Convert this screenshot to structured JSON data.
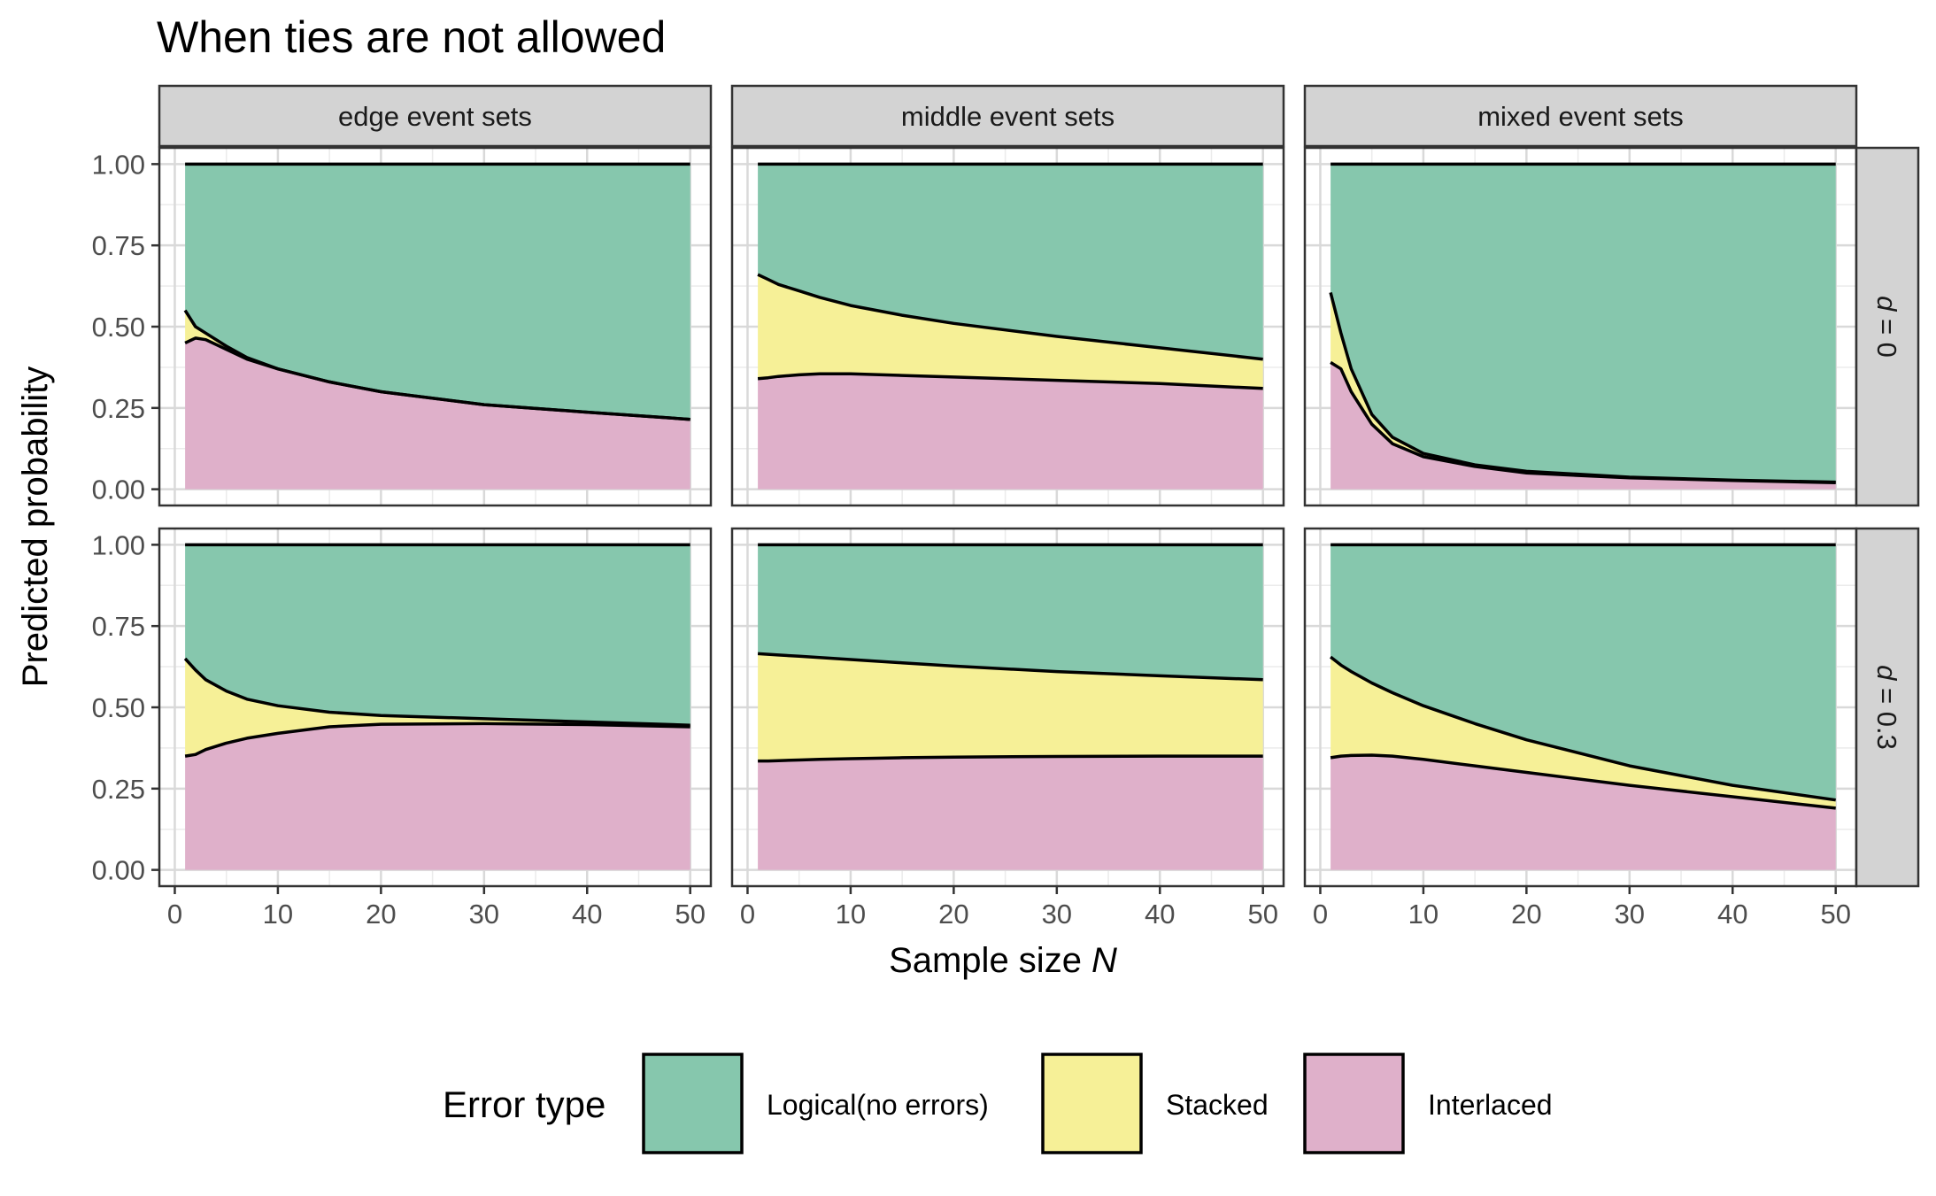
{
  "title": "When ties are not allowed",
  "colors": {
    "logical": "#86C7AD",
    "stacked": "#F6F097",
    "interlaced": "#DFB0CA",
    "line": "#000000",
    "strip": "#D3D3D3",
    "grid_major": "#D9D9D9",
    "grid_minor": "#EBEBEB"
  },
  "chart_data": {
    "type": "area",
    "stacked": true,
    "facet_columns": [
      "edge event sets",
      "middle event sets",
      "mixed event sets"
    ],
    "facet_rows": [
      {
        "label_symbol": "d",
        "label_value": " = 0"
      },
      {
        "label_symbol": "d",
        "label_value": " = 0.3"
      }
    ],
    "xlabel": "Sample size ",
    "xlabel_italic": "N",
    "ylabel": "Predicted probability",
    "xlim": [
      -1.5,
      52
    ],
    "ylim": [
      -0.05,
      1.05
    ],
    "x_ticks": [
      0,
      10,
      20,
      30,
      40,
      50
    ],
    "x_tick_labels": [
      "0",
      "10",
      "20",
      "30",
      "40",
      "50"
    ],
    "y_ticks": [
      0,
      0.25,
      0.5,
      0.75,
      1.0
    ],
    "y_tick_labels": [
      "0.00",
      "0.25",
      "0.50",
      "0.75",
      "1.00"
    ],
    "grid": true,
    "legend": {
      "title": "Error type",
      "position": "bottom",
      "entries": [
        {
          "key": "logical",
          "label": "Logical(no errors)"
        },
        {
          "key": "stacked",
          "label": "Stacked"
        },
        {
          "key": "interlaced",
          "label": "Interlaced"
        }
      ]
    },
    "x": [
      1,
      2,
      3,
      5,
      7,
      10,
      15,
      20,
      30,
      40,
      50
    ],
    "panels": [
      {
        "row": 0,
        "col": 0,
        "interlaced": [
          0.45,
          0.465,
          0.46,
          0.43,
          0.4,
          0.37,
          0.33,
          0.3,
          0.26,
          0.237,
          0.215
        ],
        "cumulative_stacked": [
          0.55,
          0.5,
          0.48,
          0.44,
          0.405,
          0.37,
          0.33,
          0.3,
          0.26,
          0.237,
          0.215
        ]
      },
      {
        "row": 0,
        "col": 1,
        "interlaced": [
          0.34,
          0.343,
          0.347,
          0.352,
          0.355,
          0.355,
          0.35,
          0.345,
          0.335,
          0.325,
          0.31
        ],
        "cumulative_stacked": [
          0.66,
          0.645,
          0.63,
          0.61,
          0.59,
          0.565,
          0.535,
          0.51,
          0.47,
          0.435,
          0.4
        ]
      },
      {
        "row": 0,
        "col": 2,
        "interlaced": [
          0.39,
          0.37,
          0.3,
          0.2,
          0.14,
          0.1,
          0.07,
          0.05,
          0.035,
          0.027,
          0.02
        ],
        "cumulative_stacked": [
          0.605,
          0.48,
          0.37,
          0.23,
          0.16,
          0.11,
          0.075,
          0.055,
          0.037,
          0.028,
          0.022
        ]
      },
      {
        "row": 1,
        "col": 0,
        "interlaced": [
          0.35,
          0.355,
          0.37,
          0.39,
          0.405,
          0.42,
          0.44,
          0.448,
          0.45,
          0.447,
          0.44
        ],
        "cumulative_stacked": [
          0.65,
          0.615,
          0.585,
          0.55,
          0.525,
          0.505,
          0.485,
          0.475,
          0.465,
          0.455,
          0.445
        ]
      },
      {
        "row": 1,
        "col": 1,
        "interlaced": [
          0.335,
          0.335,
          0.336,
          0.338,
          0.34,
          0.342,
          0.345,
          0.347,
          0.349,
          0.35,
          0.35
        ],
        "cumulative_stacked": [
          0.665,
          0.663,
          0.661,
          0.657,
          0.653,
          0.647,
          0.637,
          0.627,
          0.61,
          0.597,
          0.585
        ]
      },
      {
        "row": 1,
        "col": 2,
        "interlaced": [
          0.345,
          0.35,
          0.352,
          0.353,
          0.35,
          0.34,
          0.32,
          0.3,
          0.26,
          0.225,
          0.19
        ],
        "cumulative_stacked": [
          0.655,
          0.63,
          0.61,
          0.575,
          0.545,
          0.505,
          0.45,
          0.4,
          0.32,
          0.26,
          0.215
        ]
      }
    ]
  }
}
